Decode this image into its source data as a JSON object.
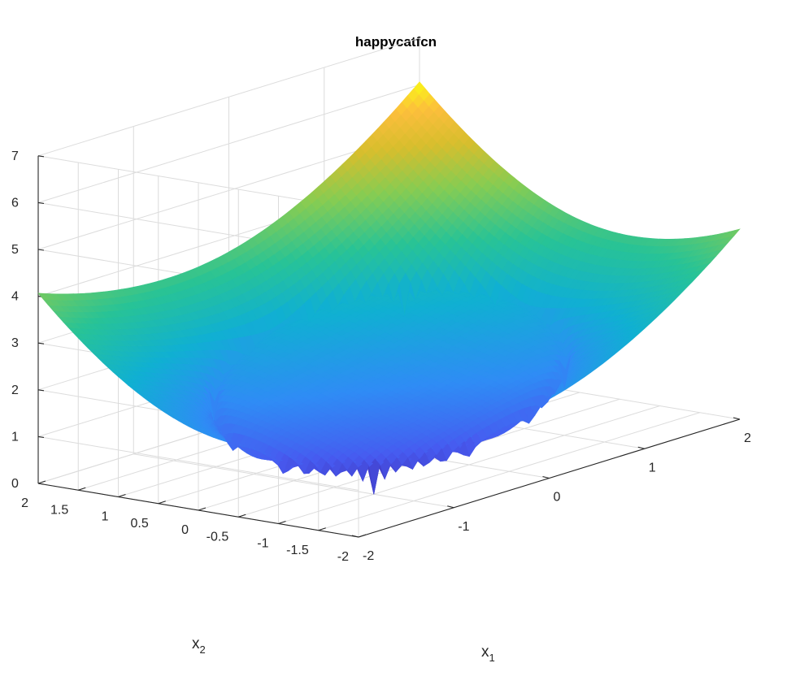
{
  "chart_data": {
    "type": "surface",
    "title": "happycatfcn",
    "function": "happycatfcn",
    "xlabel": {
      "base": "x",
      "sub": "1"
    },
    "ylabel": {
      "base": "x",
      "sub": "2"
    },
    "zlabel": "",
    "xlim": [
      -2,
      2
    ],
    "ylim": [
      -2,
      2
    ],
    "zlim": [
      0,
      7
    ],
    "x_ticks": [
      "-2",
      "-1",
      "0",
      "1",
      "2"
    ],
    "y_ticks": [
      "-2",
      "-1.5",
      "-1",
      "-0.5",
      "0",
      "0.5",
      "1",
      "1.5",
      "2"
    ],
    "z_ticks": [
      "0",
      "1",
      "2",
      "3",
      "4",
      "5",
      "6",
      "7"
    ],
    "corner_values": {
      "x1=2,x2=2": 6.6,
      "x1=2,x2=-2": 3.6,
      "x1=-2,x2=2": 4.0,
      "x1=-2,x2=-2": 1.0
    },
    "colormap": "parula",
    "grid": true,
    "view": "3-D default"
  }
}
